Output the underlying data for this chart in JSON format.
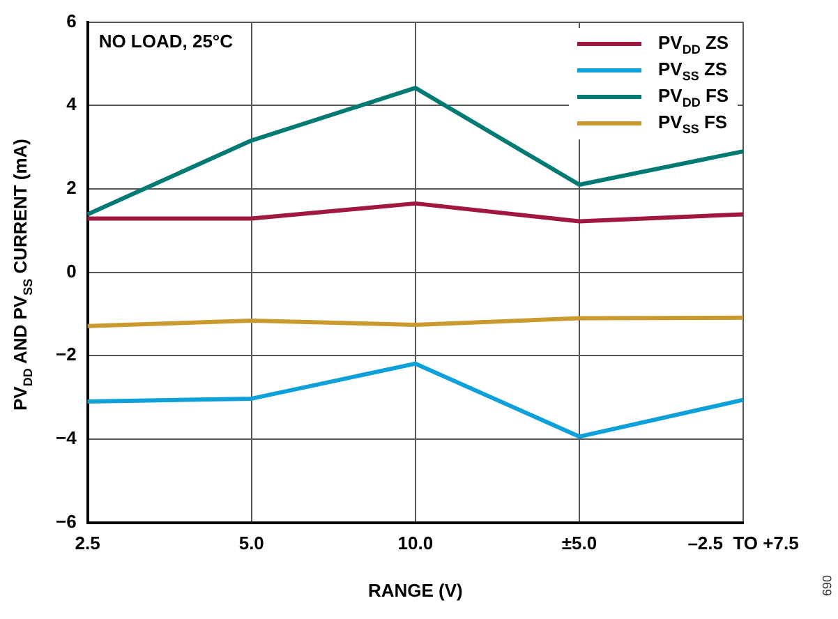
{
  "chart_data": {
    "type": "line",
    "categories": [
      "2.5",
      "5.0",
      "10.0",
      "±5.0",
      "–2.5  TO +7.5"
    ],
    "series": [
      {
        "name": "PV$_{DD}$ ZS",
        "color": "#a0173f",
        "values": [
          1.29,
          1.29,
          1.65,
          1.22,
          1.39
        ]
      },
      {
        "name": "PV$_{SS}$ ZS",
        "color": "#0ea0d8",
        "values": [
          -3.1,
          -3.03,
          -2.19,
          -3.94,
          -3.06
        ]
      },
      {
        "name": "PV$_{DD}$ FS",
        "color": "#007a73",
        "values": [
          1.39,
          3.16,
          4.42,
          2.1,
          2.9
        ]
      },
      {
        "name": "PV$_{SS}$ FS",
        "color": "#c99a2e",
        "values": [
          -1.29,
          -1.16,
          -1.26,
          -1.1,
          -1.09
        ]
      }
    ],
    "xlabel": "RANGE (V)",
    "ylabel": "PV$_{DD}$ AND PV$_{SS}$ CURRENT (mA)",
    "ylim": [
      -6,
      6
    ],
    "yticks": [
      -6,
      -4,
      -2,
      0,
      2,
      4,
      6
    ],
    "annotations": [
      "NO LOAD, 25°C",
      "069"
    ],
    "grid": true,
    "legend": "top right",
    "marker": "none",
    "line_style": "solid"
  }
}
